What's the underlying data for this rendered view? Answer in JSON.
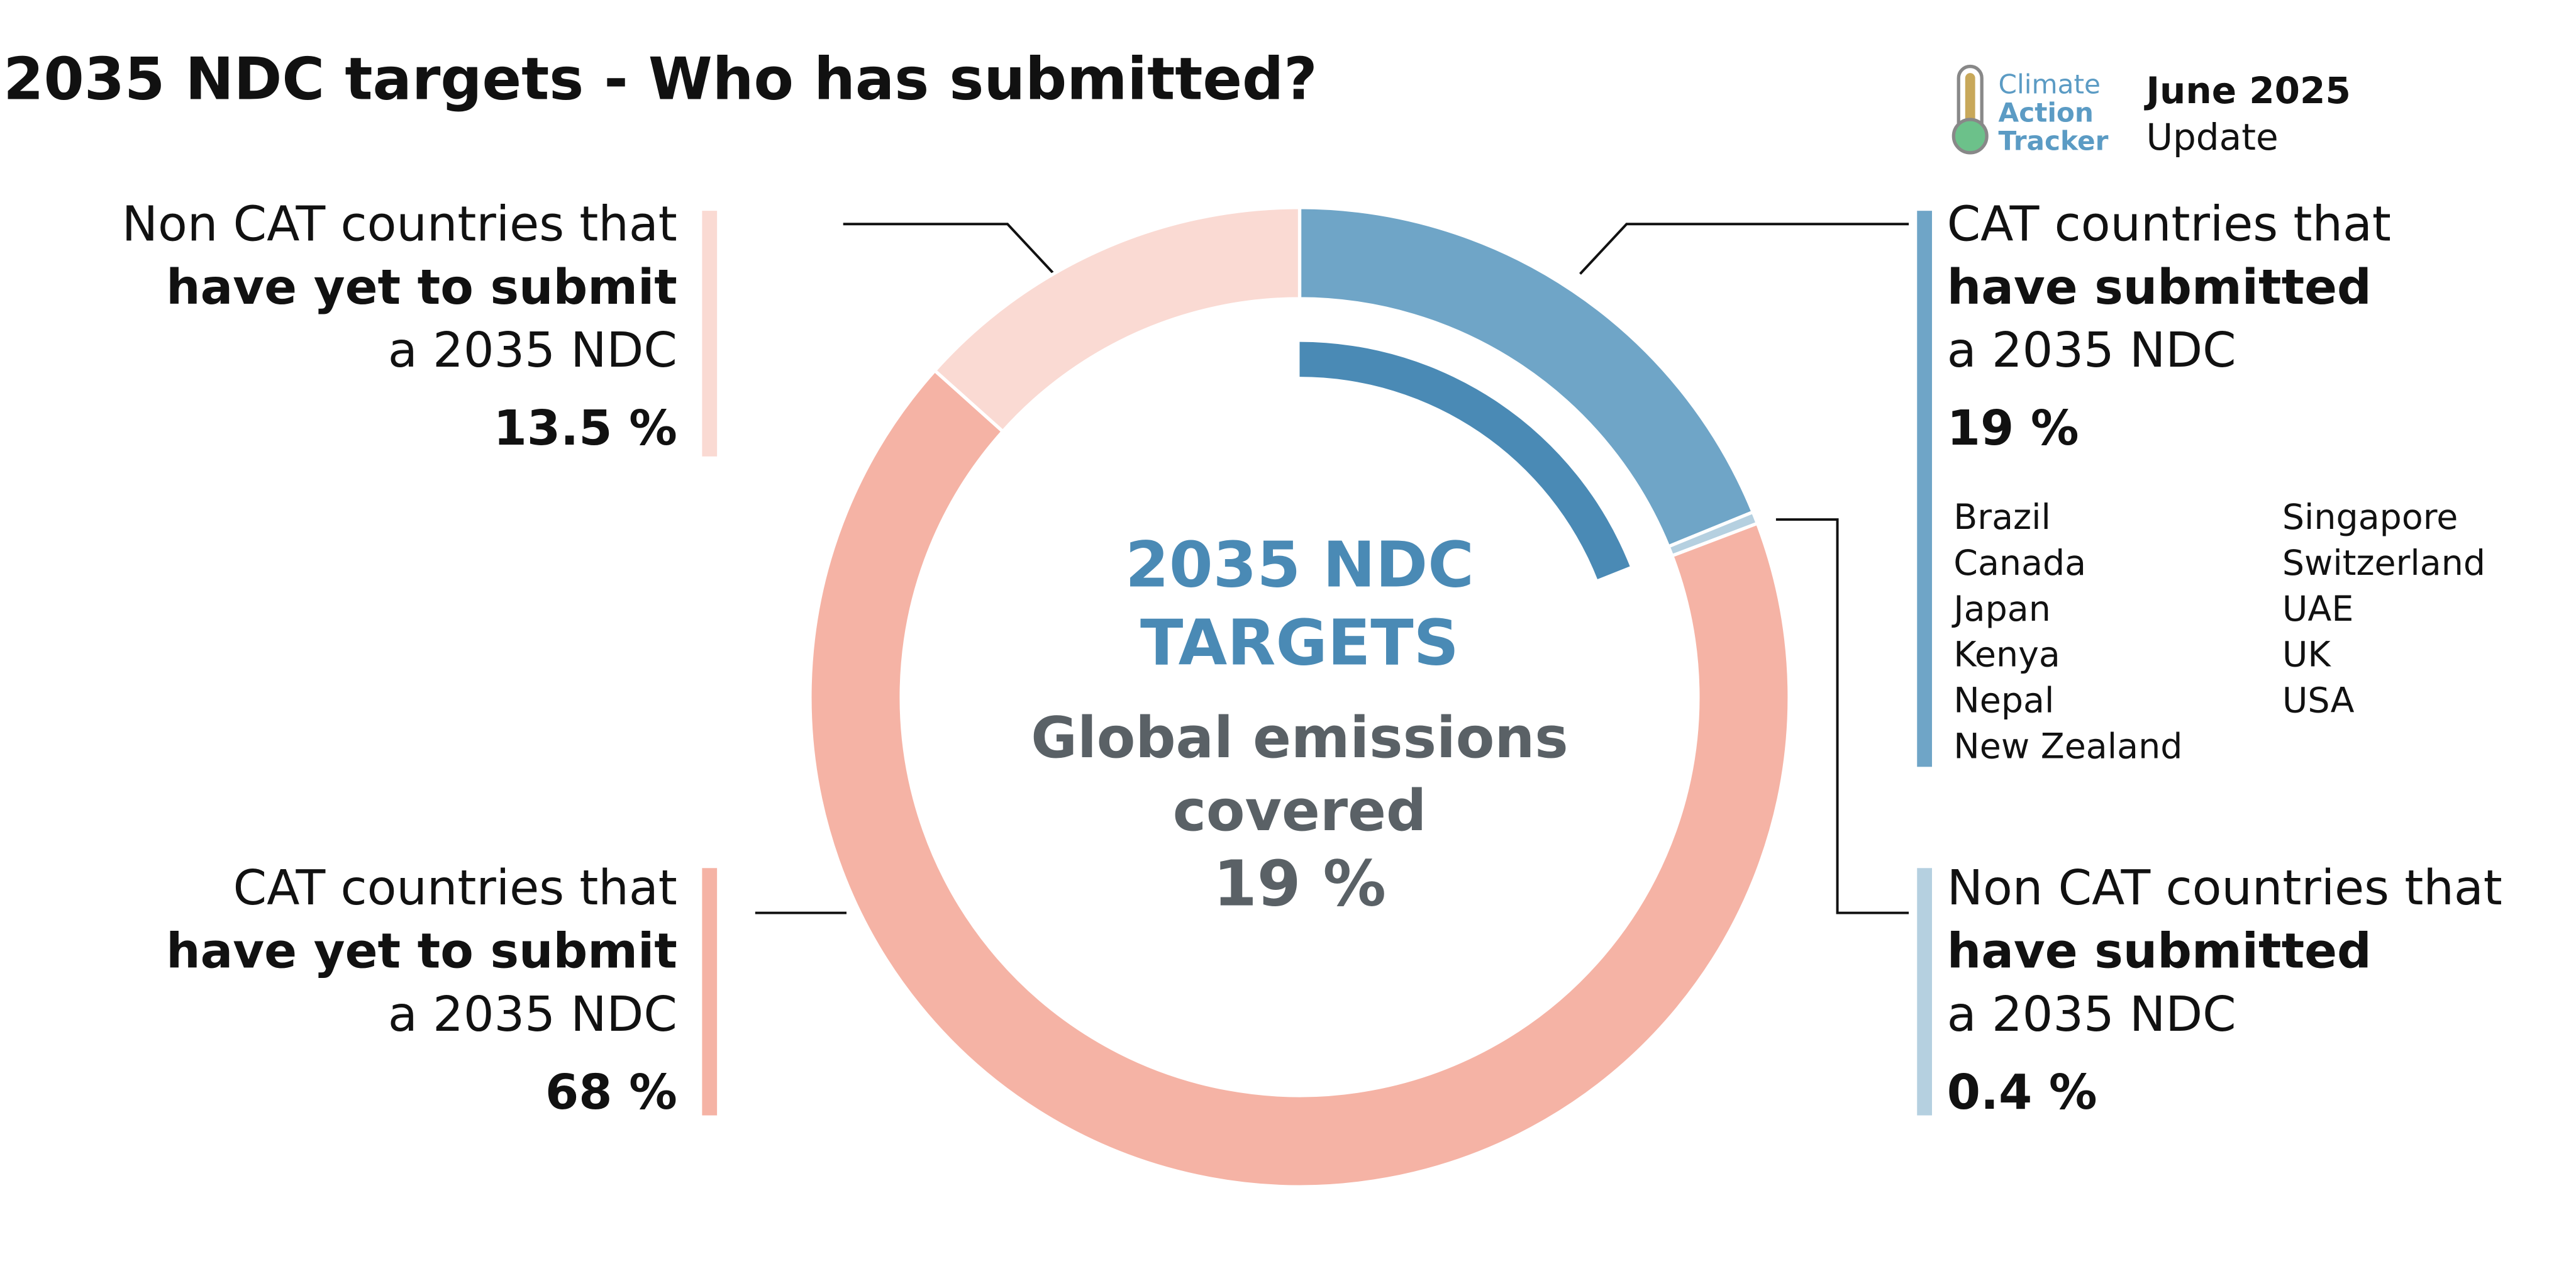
{
  "header": {
    "title": "2035 NDC targets - Who has submitted?",
    "logo": [
      "Climate",
      "Action",
      "Tracker"
    ],
    "update": [
      "June 2025",
      "Update"
    ]
  },
  "chart_data": {
    "type": "donut",
    "categories": [
      [
        "CAT countries that",
        "have submitted",
        "a 2035 NDC"
      ],
      [
        "Non CAT countries that",
        "have submitted",
        "a 2035 NDC"
      ],
      [
        "CAT countries that",
        "have yet to submit",
        "a 2035 NDC"
      ],
      [
        "Non CAT countries that",
        "have yet to submit",
        "a 2035 NDC"
      ]
    ],
    "values": [
      19,
      0.4,
      68,
      13.5
    ],
    "value_labels": [
      "19 %",
      "0.4 %",
      "68 %",
      "13.5 %"
    ],
    "colors": [
      "#6fa5c7",
      "#b5d0e0",
      "#f5b3a5",
      "#fadad3"
    ],
    "center": {
      "title": [
        "2035 NDC",
        "TARGETS"
      ],
      "subtitle": [
        "Global emissions",
        "covered"
      ],
      "value": 19,
      "value_label": "19 %",
      "color": "#4a8ab5"
    },
    "countries": [
      "Brazil",
      "Canada",
      "Japan",
      "Kenya",
      "Nepal",
      "New Zealand",
      "Singapore",
      "Switzerland",
      "UAE",
      "UK",
      "USA"
    ]
  }
}
